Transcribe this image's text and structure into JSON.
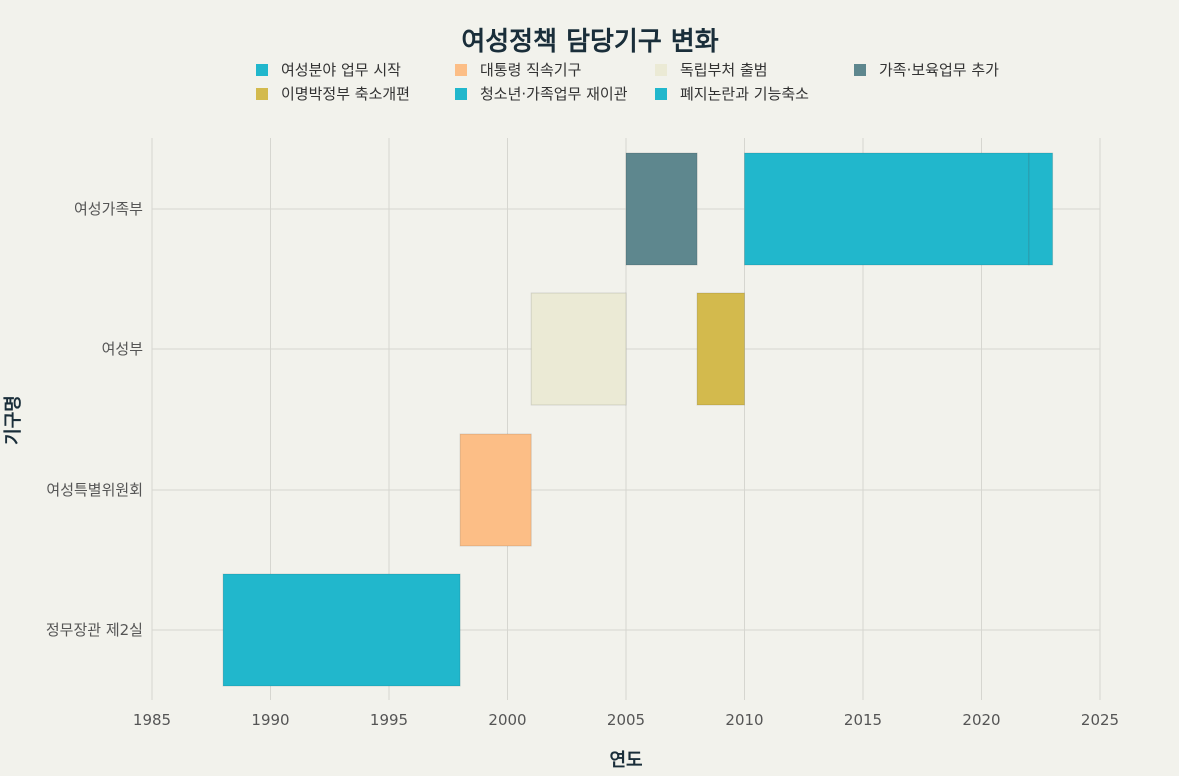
{
  "chart_data": {
    "type": "gantt",
    "title": "여성정책 담당기구 변화",
    "xlabel": "연도",
    "ylabel": "기구명",
    "xlim": [
      1985,
      2025
    ],
    "xticks": [
      1985,
      1990,
      1995,
      2000,
      2005,
      2010,
      2015,
      2020,
      2025
    ],
    "grid": true,
    "legend_position": "top",
    "categories": [
      "여성가족부",
      "여성부",
      "여성특별위원회",
      "정무장관 제2실"
    ],
    "legend": [
      {
        "label": "여성분야 업무 시작",
        "color": "#21b7cc"
      },
      {
        "label": "대통령 직속기구",
        "color": "#fcbe86"
      },
      {
        "label": "독립부처 출범",
        "color": "#ebead5"
      },
      {
        "label": "가족·보육업무 추가",
        "color": "#5e878e"
      },
      {
        "label": "이명박정부 축소개편",
        "color": "#d3ba4d"
      },
      {
        "label": "청소년·가족업무 재이관",
        "color": "#21b7cc"
      },
      {
        "label": "폐지논란과 기능축소",
        "color": "#21b7cc"
      }
    ],
    "tasks": [
      {
        "category": "정무장관 제2실",
        "start": 1988,
        "end": 1998,
        "phase": "여성분야 업무 시작",
        "color": "#21b7cc"
      },
      {
        "category": "여성특별위원회",
        "start": 1998,
        "end": 2001,
        "phase": "대통령 직속기구",
        "color": "#fcbe86"
      },
      {
        "category": "여성부",
        "start": 2001,
        "end": 2005,
        "phase": "독립부처 출범",
        "color": "#ebead5"
      },
      {
        "category": "여성가족부",
        "start": 2005,
        "end": 2008,
        "phase": "가족·보육업무 추가",
        "color": "#5e878e"
      },
      {
        "category": "여성부",
        "start": 2008,
        "end": 2010,
        "phase": "이명박정부 축소개편",
        "color": "#d3ba4d"
      },
      {
        "category": "여성가족부",
        "start": 2010,
        "end": 2022,
        "phase": "청소년·가족업무 재이관",
        "color": "#21b7cc"
      },
      {
        "category": "여성가족부",
        "start": 2022,
        "end": 2023,
        "phase": "폐지논란과 기능축소",
        "color": "#21b7cc"
      }
    ]
  }
}
